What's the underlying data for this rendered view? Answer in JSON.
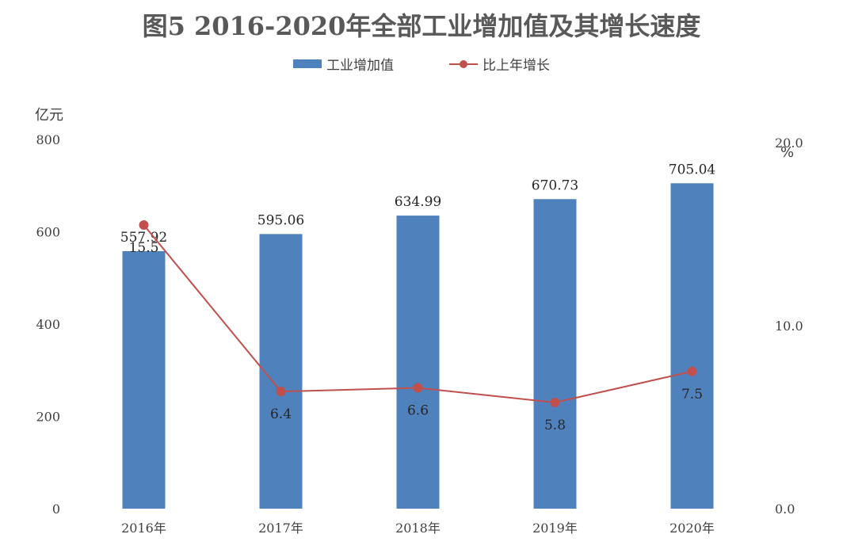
{
  "title": "图5  2016-2020年全部工业增加值及其增长速度",
  "legend": {
    "bar_label": "工业增加值",
    "line_label": "比上年增长"
  },
  "left_unit": "亿元",
  "right_unit": "%",
  "colors": {
    "bar": "#4F81BD",
    "line": "#C0504D",
    "text": "#404040"
  },
  "chart_data": {
    "type": "bar",
    "categories": [
      "2016年",
      "2017年",
      "2018年",
      "2019年",
      "2020年"
    ],
    "series": [
      {
        "name": "工业增加值",
        "type": "bar",
        "axis": "left",
        "values": [
          557.92,
          595.06,
          634.99,
          670.73,
          705.04
        ]
      },
      {
        "name": "比上年增长",
        "type": "line",
        "axis": "right",
        "values": [
          15.5,
          6.4,
          6.6,
          5.8,
          7.5
        ]
      }
    ],
    "ylim_left": [
      0,
      800
    ],
    "yticks_left": [
      0,
      200,
      400,
      600,
      800
    ],
    "ylim_right": [
      0,
      20
    ],
    "yticks_right": [
      "0.0",
      "10.0",
      "20.0"
    ],
    "grid": false,
    "legend_position": "top"
  }
}
